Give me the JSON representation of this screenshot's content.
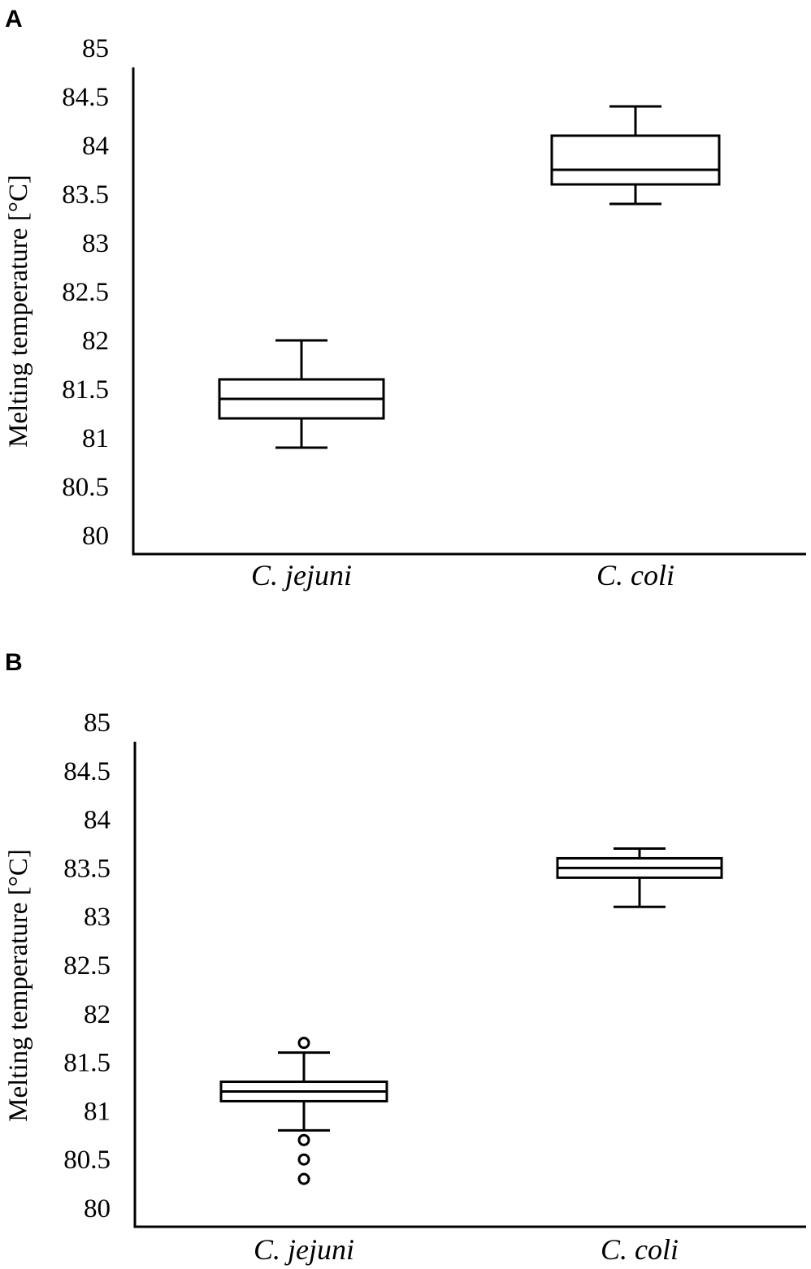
{
  "chart_data": [
    {
      "type": "box",
      "panel": "A",
      "ylabel": "Melting temperature [°C]",
      "ylim": [
        80,
        85
      ],
      "yticks": [
        "80",
        "80.5",
        "81",
        "81.5",
        "82",
        "82.5",
        "83",
        "83.5",
        "84",
        "84.5",
        "85"
      ],
      "categories": [
        "C. jejuni",
        "C. coli"
      ],
      "boxes": [
        {
          "category": "C. jejuni",
          "whisker_low": 80.9,
          "q1": 81.2,
          "median": 81.4,
          "q3": 81.6,
          "whisker_high": 82.0,
          "outliers": []
        },
        {
          "category": "C. coli",
          "whisker_low": 83.4,
          "q1": 83.6,
          "median": 83.75,
          "q3": 84.1,
          "whisker_high": 84.4,
          "outliers": []
        }
      ]
    },
    {
      "type": "box",
      "panel": "B",
      "ylabel": "Melting temperature [°C]",
      "ylim": [
        80,
        85
      ],
      "yticks": [
        "80",
        "80.5",
        "81",
        "81.5",
        "82",
        "82.5",
        "83",
        "83.5",
        "84",
        "84.5",
        "85"
      ],
      "categories": [
        "C. jejuni",
        "C. coli"
      ],
      "boxes": [
        {
          "category": "C. jejuni",
          "whisker_low": 80.8,
          "q1": 81.1,
          "median": 81.2,
          "q3": 81.3,
          "whisker_high": 81.6,
          "outliers": [
            81.7,
            80.7,
            80.5,
            80.3
          ]
        },
        {
          "category": "C. coli",
          "whisker_low": 83.1,
          "q1": 83.4,
          "median": 83.5,
          "q3": 83.6,
          "whisker_high": 83.7,
          "outliers": []
        }
      ]
    }
  ]
}
